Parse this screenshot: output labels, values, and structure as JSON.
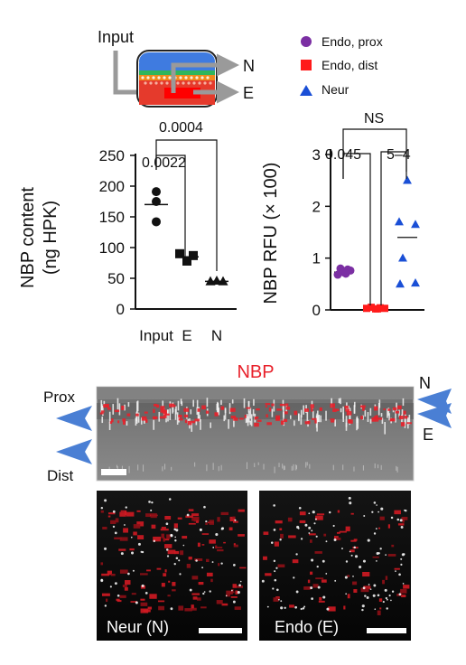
{
  "colors": {
    "endo_prox": "#7b2fa3",
    "endo_dist": "#ff1a1a",
    "neur": "#1a4fd6",
    "nbp_title": "#e8202a",
    "arrow_blue": "#4a7fd4",
    "schematic_gray": "#9a9a9a"
  },
  "schematic": {
    "input_label": "Input",
    "n_label": "N",
    "e_label": "E"
  },
  "legend": {
    "items": [
      {
        "label": "Endo, prox",
        "marker": "circle",
        "color": "#7b2fa3"
      },
      {
        "label": "Endo, dist",
        "marker": "square",
        "color": "#ff1a1a"
      },
      {
        "label": "Neur",
        "marker": "triangle",
        "color": "#1a4fd6"
      }
    ]
  },
  "chart_data": [
    {
      "type": "scatter",
      "ylabel": "NBP content (ng HPK)",
      "ylabel_line1": "NBP content",
      "ylabel_line2": "(ng HPK)",
      "categories": [
        "Input",
        "E",
        "N"
      ],
      "ylim": [
        0,
        250
      ],
      "yticks": [
        0,
        50,
        100,
        150,
        200,
        250
      ],
      "series": [
        {
          "category": "Input",
          "marker": "circle",
          "values": [
            191,
            175,
            142
          ],
          "mean": 170
        },
        {
          "category": "E",
          "marker": "square",
          "values": [
            90,
            87,
            78
          ],
          "mean": 85
        },
        {
          "category": "N",
          "marker": "triangle",
          "values": [
            45,
            46,
            45
          ],
          "mean": 45
        }
      ],
      "annotations": [
        {
          "text": "0.0022",
          "from": "Input",
          "to": "E"
        },
        {
          "text": "0.0004",
          "from": "Input",
          "to": "N"
        }
      ]
    },
    {
      "type": "scatter",
      "ylabel": "NBP RFU (× 100)",
      "ylim": [
        0,
        3
      ],
      "yticks": [
        0,
        1,
        2,
        3
      ],
      "series": [
        {
          "name": "Endo, prox",
          "marker": "circle",
          "color": "#7b2fa3",
          "values": [
            0.8,
            0.72,
            0.78,
            0.68,
            0.76,
            0.7
          ],
          "mean": 0.73
        },
        {
          "name": "Endo, dist",
          "marker": "square",
          "color": "#ff1a1a",
          "values": [
            0.03,
            0.05,
            0.02,
            0.04,
            0.03,
            0.02
          ],
          "mean": 0.03
        },
        {
          "name": "Neur",
          "marker": "triangle",
          "color": "#1a4fd6",
          "values": [
            2.5,
            1.7,
            1.65,
            1.0,
            0.5,
            0.52
          ],
          "mean": 1.4
        }
      ],
      "annotations": [
        {
          "text": "0.045",
          "from": "Endo, prox",
          "to": "Endo, dist"
        },
        {
          "text": "5–4",
          "from": "Endo, dist",
          "to": "Neur"
        },
        {
          "text": "NS",
          "from": "Endo, prox",
          "to": "Neur"
        }
      ]
    }
  ],
  "micrograph": {
    "title": "NBP",
    "prox_label": "Prox",
    "dist_label": "Dist",
    "n_label": "N",
    "e_label": "E"
  },
  "panels": [
    {
      "label": "Neur (N)"
    },
    {
      "label": "Endo (E)"
    }
  ]
}
